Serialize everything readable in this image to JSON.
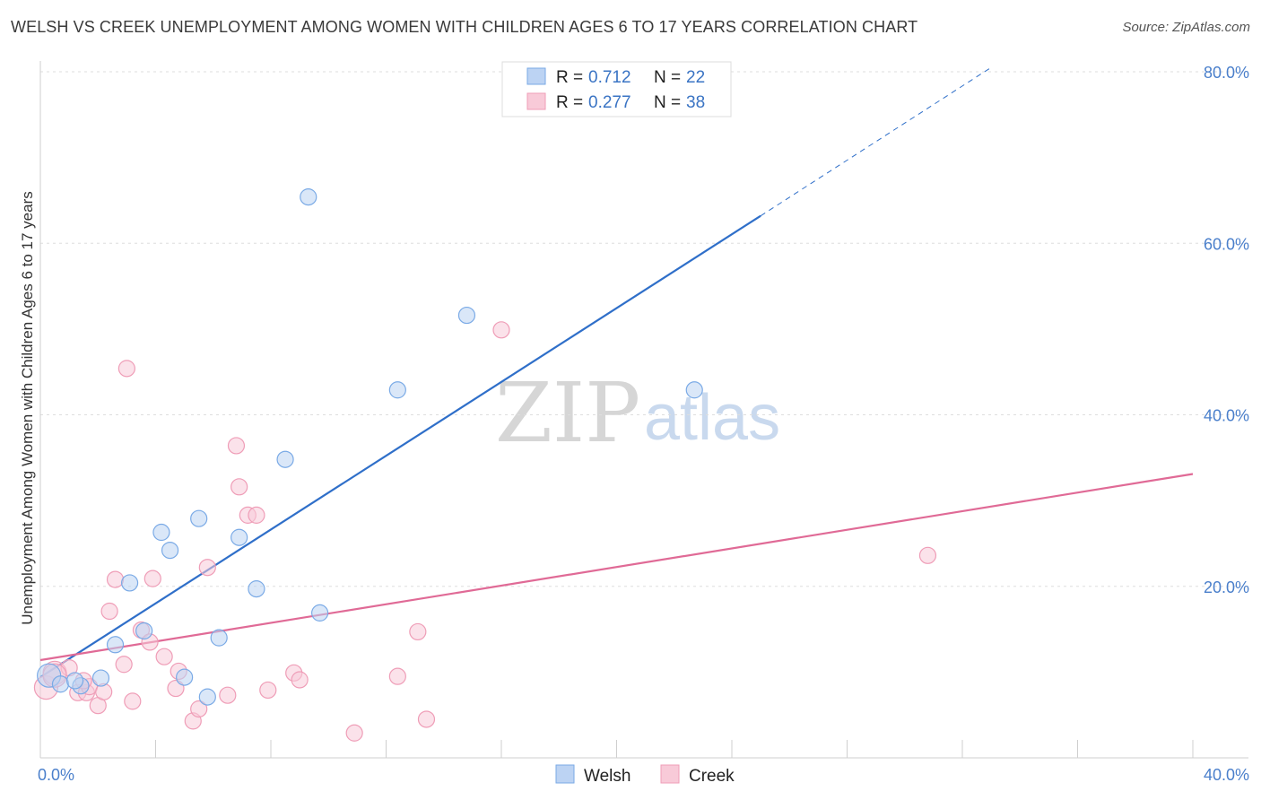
{
  "title": "WELSH VS CREEK UNEMPLOYMENT AMONG WOMEN WITH CHILDREN AGES 6 TO 17 YEARS CORRELATION CHART",
  "source": "Source: ZipAtlas.com",
  "watermark": {
    "zip": "ZIP",
    "atlas": "atlas"
  },
  "legend_top": [
    {
      "r_label": "R =",
      "r": "0.712",
      "n_label": "N =",
      "n": "22"
    },
    {
      "r_label": "R =",
      "r": "0.277",
      "n_label": "N =",
      "n": "38"
    }
  ],
  "chart_data": {
    "type": "scatter",
    "title": "WELSH VS CREEK UNEMPLOYMENT AMONG WOMEN WITH CHILDREN AGES 6 TO 17 YEARS CORRELATION CHART",
    "xlabel": "",
    "ylabel": "Unemployment Among Women with Children Ages 6 to 17 years",
    "xlim": [
      0,
      40
    ],
    "ylim": [
      0,
      80
    ],
    "x_tick_labels": [
      "0.0%",
      "40.0%"
    ],
    "y_ticks": [
      20,
      40,
      60,
      80
    ],
    "y_tick_labels": [
      "20.0%",
      "40.0%",
      "60.0%",
      "80.0%"
    ],
    "series": [
      {
        "name": "Welsh",
        "color": "#7aaae6",
        "fill": "#bcd3f3",
        "line_color": "#2f6fc9",
        "trend": {
          "x0": 0,
          "y0": 9.4,
          "x1": 25,
          "y1": 63.2,
          "dash_to_x": 33,
          "dash_to_y": 80.5
        },
        "points": [
          [
            0.3,
            9.6
          ],
          [
            0.7,
            8.6
          ],
          [
            1.4,
            8.4
          ],
          [
            1.2,
            9.0
          ],
          [
            2.1,
            9.3
          ],
          [
            2.6,
            13.2
          ],
          [
            3.1,
            20.4
          ],
          [
            3.6,
            14.8
          ],
          [
            4.2,
            26.3
          ],
          [
            4.5,
            24.2
          ],
          [
            5.0,
            9.4
          ],
          [
            5.5,
            27.9
          ],
          [
            5.8,
            7.1
          ],
          [
            6.2,
            14.0
          ],
          [
            6.9,
            25.7
          ],
          [
            7.5,
            19.7
          ],
          [
            8.5,
            34.8
          ],
          [
            9.7,
            16.9
          ],
          [
            9.3,
            65.4
          ],
          [
            12.4,
            42.9
          ],
          [
            14.8,
            51.6
          ],
          [
            22.7,
            42.9
          ]
        ]
      },
      {
        "name": "Creek",
        "color": "#ef9db7",
        "fill": "#f8cad8",
        "line_color": "#e06a96",
        "trend": {
          "x0": 0,
          "y0": 11.4,
          "x1": 40,
          "y1": 33.1
        },
        "points": [
          [
            0.2,
            8.2
          ],
          [
            0.5,
            9.9
          ],
          [
            1.0,
            10.5
          ],
          [
            1.3,
            7.6
          ],
          [
            1.6,
            7.6
          ],
          [
            1.7,
            8.3
          ],
          [
            2.0,
            6.1
          ],
          [
            2.2,
            7.7
          ],
          [
            2.4,
            17.1
          ],
          [
            2.6,
            20.8
          ],
          [
            2.9,
            10.9
          ],
          [
            3.0,
            45.4
          ],
          [
            3.2,
            6.6
          ],
          [
            3.5,
            14.9
          ],
          [
            3.8,
            13.5
          ],
          [
            3.9,
            20.9
          ],
          [
            4.3,
            11.8
          ],
          [
            4.7,
            8.1
          ],
          [
            4.8,
            10.1
          ],
          [
            5.3,
            4.3
          ],
          [
            5.5,
            5.7
          ],
          [
            5.8,
            22.2
          ],
          [
            6.5,
            7.3
          ],
          [
            6.8,
            36.4
          ],
          [
            6.9,
            31.6
          ],
          [
            7.2,
            28.3
          ],
          [
            7.5,
            28.3
          ],
          [
            7.9,
            7.9
          ],
          [
            8.8,
            9.9
          ],
          [
            9.0,
            9.1
          ],
          [
            10.9,
            2.9
          ],
          [
            12.4,
            9.5
          ],
          [
            13.1,
            14.7
          ],
          [
            13.4,
            4.5
          ],
          [
            16.0,
            49.9
          ],
          [
            30.8,
            23.6
          ],
          [
            0.5,
            9.6
          ],
          [
            1.5,
            9.0
          ]
        ]
      }
    ]
  }
}
